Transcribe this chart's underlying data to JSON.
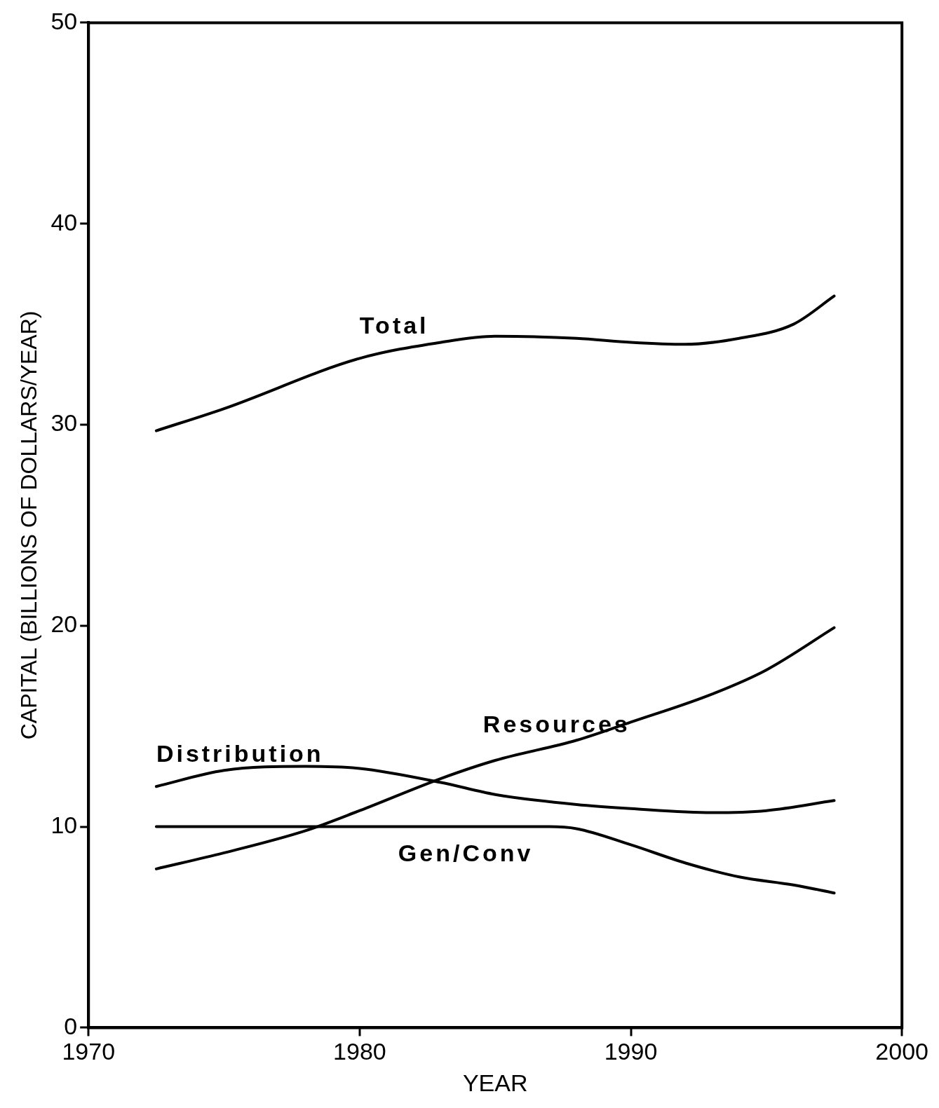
{
  "chart_data": {
    "type": "line",
    "xlabel": "YEAR",
    "ylabel": "CAPITAL (BILLIONS OF DOLLARS/YEAR)",
    "xlim": [
      1970,
      2000
    ],
    "xticks": [
      1970,
      1980,
      1990,
      2000
    ],
    "ylim": [
      0,
      50
    ],
    "yticks": [
      0,
      10,
      20,
      30,
      40,
      50
    ],
    "grid": false,
    "legend": false,
    "marker": "none",
    "line_style": "solid",
    "series": [
      {
        "name": "Total",
        "color": "#000000",
        "x": [
          1972.5,
          1975,
          1980,
          1983,
          1985,
          1988,
          1990,
          1992,
          1994,
          1996,
          1997.5
        ],
        "values": [
          29.7,
          30.8,
          33.3,
          34.1,
          34.4,
          34.3,
          34.1,
          34.0,
          34.3,
          35.0,
          36.4
        ]
      },
      {
        "name": "Resources",
        "color": "#000000",
        "x": [
          1972.5,
          1975,
          1978,
          1980,
          1983,
          1985,
          1988,
          1990,
          1993,
          1995,
          1997.5
        ],
        "values": [
          7.9,
          8.7,
          9.8,
          10.8,
          12.4,
          13.3,
          14.3,
          15.2,
          16.6,
          17.8,
          19.9
        ]
      },
      {
        "name": "Distribution",
        "color": "#000000",
        "x": [
          1972.5,
          1975,
          1978,
          1980,
          1983,
          1985,
          1988,
          1990,
          1993,
          1995,
          1997.5
        ],
        "values": [
          12.0,
          12.8,
          13.0,
          12.9,
          12.2,
          11.6,
          11.1,
          10.9,
          10.7,
          10.8,
          11.3
        ]
      },
      {
        "name": "Gen/Conv",
        "color": "#000000",
        "x": [
          1972.5,
          1980,
          1987,
          1988,
          1990,
          1992,
          1994,
          1996,
          1997.5
        ],
        "values": [
          10.0,
          10.0,
          10.0,
          9.9,
          9.1,
          8.2,
          7.5,
          7.1,
          6.7
        ]
      }
    ]
  }
}
